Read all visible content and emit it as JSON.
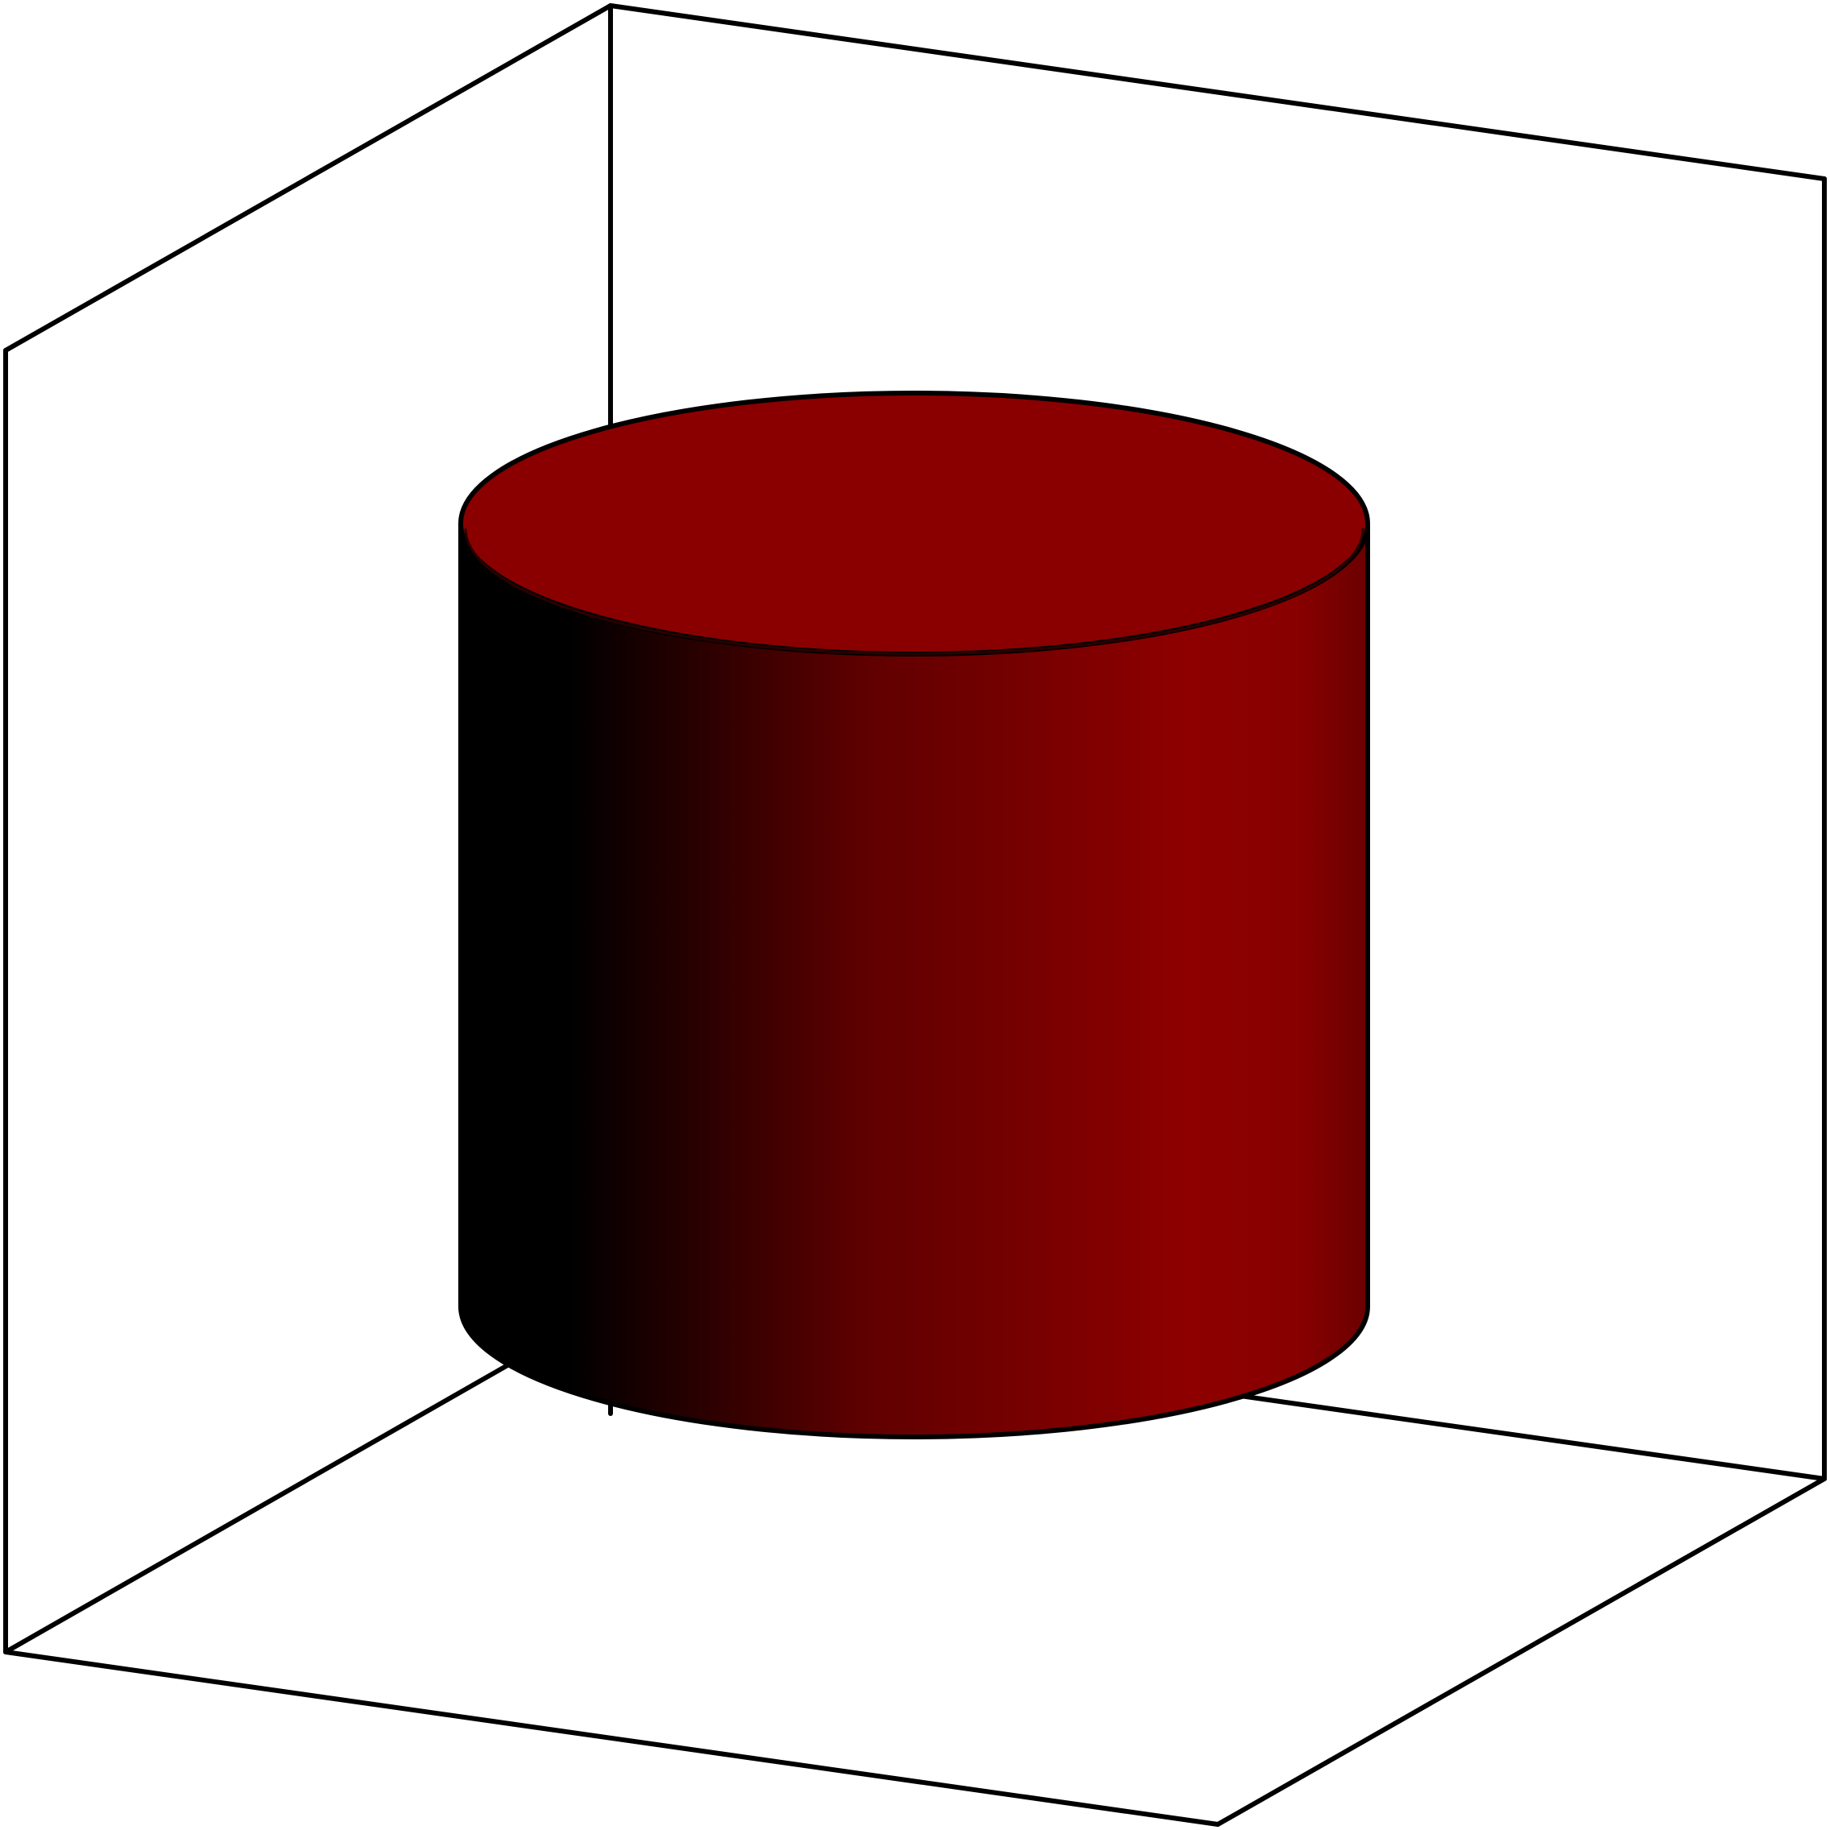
{
  "figure": {
    "type": "3d-cylinder-in-bounding-box",
    "title": "",
    "labels": []
  },
  "colors": {
    "background": "#ffffff",
    "box_edges": "#000000",
    "cylinder_top": "#8a0000",
    "cylinder_side_dark": "#000000",
    "cylinder_side_mid": "#600000",
    "cylinder_side_bright": "#8e0000",
    "cylinder_side_right": "#6a0000",
    "cylinder_outline": "#000000"
  }
}
